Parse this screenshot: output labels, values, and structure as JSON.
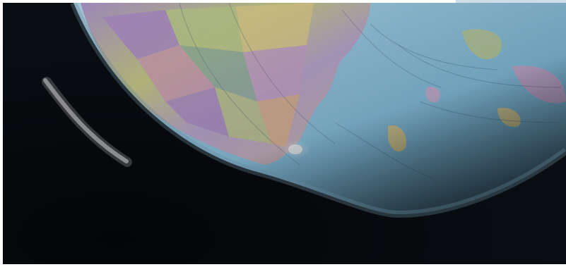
{
  "image": {
    "subject": "globe",
    "colors": {
      "space": "#07090c",
      "ocean": "#8fc3dd",
      "land_purple": "#a98bc4",
      "land_green": "#b9c78a",
      "land_yellow": "#d8c98a",
      "land_pink": "#c99ab3",
      "shadow": "#0a0d12"
    }
  }
}
